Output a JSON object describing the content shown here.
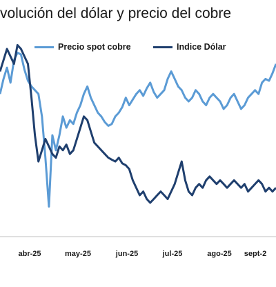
{
  "chart_data": {
    "type": "line",
    "title": "volución del dólar y precio del cobre",
    "xlabel": "",
    "ylabel": "",
    "x_tick_labels": [
      "abr-25",
      "may-25",
      "jun-25",
      "jul-25",
      "ago-25",
      "sept-2"
    ],
    "grid": false,
    "legend_position": "top",
    "y_scale": [
      0,
      100
    ],
    "series": [
      {
        "name": "Precio spot cobre",
        "color": "#5b9bd5",
        "values": [
          72,
          80,
          86,
          78,
          90,
          94,
          93,
          85,
          79,
          76,
          74,
          72,
          60,
          38,
          12,
          50,
          42,
          50,
          60,
          54,
          58,
          56,
          62,
          66,
          72,
          76,
          70,
          66,
          62,
          60,
          57,
          55,
          56,
          60,
          62,
          65,
          70,
          66,
          69,
          72,
          74,
          71,
          75,
          78,
          73,
          70,
          72,
          74,
          80,
          84,
          80,
          76,
          74,
          70,
          68,
          70,
          74,
          72,
          68,
          66,
          70,
          72,
          70,
          68,
          64,
          66,
          70,
          72,
          68,
          64,
          66,
          70,
          72,
          74,
          72,
          78,
          80,
          79,
          83,
          88
        ]
      },
      {
        "name": "Indice Dólar",
        "color": "#1f3f6e",
        "values": [
          84,
          90,
          96,
          92,
          88,
          98,
          96,
          92,
          88,
          70,
          50,
          36,
          42,
          48,
          44,
          40,
          38,
          44,
          42,
          45,
          40,
          42,
          48,
          54,
          60,
          58,
          52,
          46,
          44,
          42,
          40,
          38,
          37,
          36,
          38,
          35,
          34,
          32,
          26,
          22,
          18,
          20,
          16,
          14,
          16,
          18,
          20,
          18,
          16,
          20,
          24,
          30,
          36,
          26,
          20,
          18,
          22,
          24,
          22,
          26,
          28,
          26,
          24,
          26,
          24,
          22,
          24,
          26,
          24,
          22,
          24,
          20,
          22,
          24,
          26,
          24,
          20,
          22,
          20,
          22
        ]
      }
    ]
  }
}
